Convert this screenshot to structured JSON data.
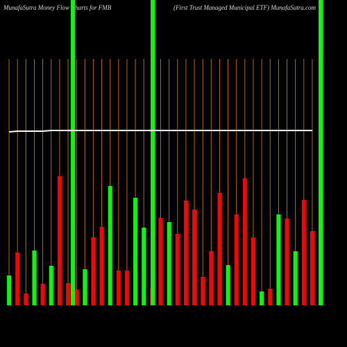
{
  "chart_data": {
    "type": "bar",
    "title": "MunafaSutra  Money Flow  Charts for FMB",
    "subtitle": "(First Trust Managed Municipal ETF) MunafaSutra.com",
    "categories": [
      null,
      null,
      null,
      null,
      null,
      null,
      null,
      null,
      null,
      null,
      null,
      null,
      null,
      null,
      null,
      null,
      null,
      null,
      null,
      null,
      null,
      null,
      null,
      null,
      null,
      null,
      null,
      null,
      null,
      null,
      null,
      null,
      null,
      null,
      null,
      null,
      null
    ],
    "values": [
      43,
      76,
      17,
      79,
      31,
      57,
      186,
      32,
      23,
      52,
      98,
      113,
      172,
      50,
      50,
      155,
      112,
      25,
      126,
      120,
      103,
      151,
      138,
      41,
      78,
      162,
      58,
      131,
      183,
      98,
      20,
      24,
      131,
      125,
      78,
      152,
      107
    ],
    "colors": [
      "#00ff00",
      "#ff0000",
      "#ff0000",
      "#00ff00",
      "#ff0000",
      "#00ff00",
      "#ff0000",
      "#ff0000",
      "#ff0000",
      "#00ff00",
      "#ff0000",
      "#ff0000",
      "#00ff00",
      "#ff0000",
      "#ff0000",
      "#00ff00",
      "#00ff00",
      "#ff0000",
      "#ff0000",
      "#00ff00",
      "#ff0000",
      "#ff0000",
      "#ff0000",
      "#ff0000",
      "#ff0000",
      "#ff0000",
      "#00ff00",
      "#ff0000",
      "#ff0000",
      "#ff0000",
      "#00ff00",
      "#ff0000",
      "#00ff00",
      "#ff0000",
      "#00ff00",
      "#ff0000",
      "#ff0000"
    ],
    "line": {
      "color": "#ffffff",
      "values": [
        250,
        251,
        251,
        251,
        251,
        252,
        252,
        252,
        252,
        252,
        252,
        252,
        252,
        252,
        252,
        252,
        252,
        252,
        252,
        252,
        252,
        252,
        252,
        252,
        252,
        252,
        252,
        252,
        252,
        252,
        252,
        252,
        252,
        252,
        252,
        252,
        252
      ]
    },
    "ylim": [
      0,
      440
    ]
  }
}
